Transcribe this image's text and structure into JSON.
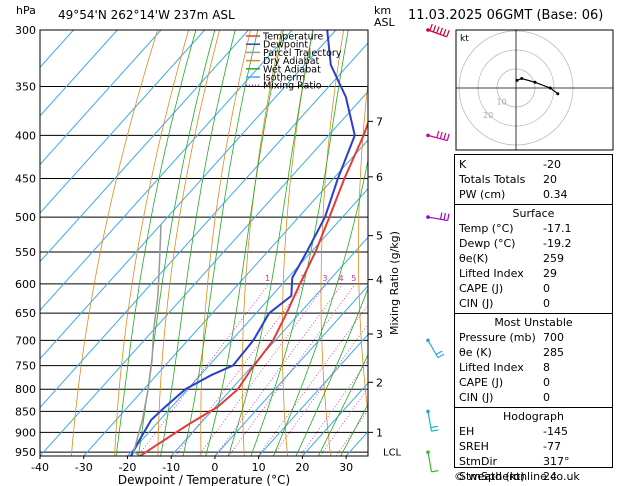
{
  "header": {
    "location": "49°54'N  262°14'W  237m  ASL",
    "datetime": "11.03.2025  06GMT  (Base: 06)",
    "hpa_unit": "hPa",
    "km_unit": "km",
    "asl_unit": "ASL"
  },
  "chart_data": {
    "type": "line",
    "title": "Skew-T log-P sounding",
    "xlabel": "Dewpoint / Temperature (°C)",
    "ylabel": "hPa",
    "mixing_ratio_axis_label": "Mixing Ratio (g/kg)",
    "xlim": [
      -40,
      35
    ],
    "ylim": [
      960,
      300
    ],
    "x_ticks": [
      -40,
      -30,
      -20,
      -10,
      0,
      10,
      20,
      30
    ],
    "x_tick_labels": [
      "-40",
      "-30",
      "-20",
      "-10",
      "0",
      "10",
      "20",
      "30"
    ],
    "pressure_levels": [
      300,
      350,
      400,
      450,
      500,
      550,
      600,
      650,
      700,
      750,
      800,
      850,
      900,
      950
    ],
    "km_levels": [
      {
        "km": 1,
        "p": 900
      },
      {
        "km": 2,
        "p": 785
      },
      {
        "km": 3,
        "p": 688
      },
      {
        "km": 4,
        "p": 593
      },
      {
        "km": 5,
        "p": 526
      },
      {
        "km": 6,
        "p": 448
      },
      {
        "km": 7,
        "p": 385
      }
    ],
    "lcl_label": "LCL",
    "lcl_pressure": 948,
    "mixing_ratio_labels": [
      "1",
      "2",
      "3",
      "4",
      "5",
      "8",
      "10",
      "15",
      "20",
      "25"
    ],
    "legend": [
      {
        "name": "Temperature",
        "color": "#e23b3b",
        "dash": "solid"
      },
      {
        "name": "Dewpoint",
        "color": "#2b3fcc",
        "dash": "solid"
      },
      {
        "name": "Parcel Trajectory",
        "color": "#999999",
        "dash": "solid"
      },
      {
        "name": "Dry Adiabat",
        "color": "#e08a1e",
        "dash": "solid"
      },
      {
        "name": "Wet Adiabat",
        "color": "#22aa22",
        "dash": "solid"
      },
      {
        "name": "Isotherm",
        "color": "#3fa9e8",
        "dash": "solid"
      },
      {
        "name": "Mixing Ratio",
        "color": "#cc2fa6",
        "dash": "dotted"
      }
    ],
    "series": [
      {
        "name": "Temperature",
        "color": "#e23b3b",
        "points": [
          [
            -17.1,
            960
          ],
          [
            -15.5,
            930
          ],
          [
            -12.5,
            880
          ],
          [
            -9.5,
            840
          ],
          [
            -8.5,
            800
          ],
          [
            -9.5,
            760
          ],
          [
            -10.5,
            700
          ],
          [
            -13,
            650
          ],
          [
            -16,
            600
          ],
          [
            -19,
            550
          ],
          [
            -23,
            500
          ],
          [
            -27.5,
            450
          ],
          [
            -32,
            400
          ],
          [
            -38,
            350
          ],
          [
            -44,
            300
          ]
        ]
      },
      {
        "name": "Dewpoint",
        "color": "#2b3fcc",
        "points": [
          [
            -19.2,
            960
          ],
          [
            -20.5,
            920
          ],
          [
            -22,
            870
          ],
          [
            -21.5,
            840
          ],
          [
            -20.5,
            800
          ],
          [
            -17.5,
            770
          ],
          [
            -14.5,
            750
          ],
          [
            -15,
            700
          ],
          [
            -17,
            650
          ],
          [
            -15.5,
            620
          ],
          [
            -19,
            590
          ],
          [
            -21,
            550
          ],
          [
            -24,
            500
          ],
          [
            -29,
            450
          ],
          [
            -34,
            400
          ],
          [
            -44,
            360
          ],
          [
            -54,
            330
          ],
          [
            -62,
            300
          ]
        ]
      },
      {
        "name": "Parcel Trajectory",
        "color": "#999999",
        "points": [
          [
            -17.1,
            960
          ],
          [
            -19.5,
            948
          ],
          [
            -24,
            870
          ],
          [
            -29,
            800
          ],
          [
            -34,
            740
          ],
          [
            -40,
            680
          ],
          [
            -46,
            620
          ],
          [
            -52,
            570
          ],
          [
            -60,
            510
          ]
        ]
      }
    ]
  },
  "hodograph": {
    "unit_label": "kt",
    "ring_labels": [
      "10",
      "20"
    ],
    "points": [
      [
        0.5,
        -4
      ],
      [
        3,
        -5
      ],
      [
        10,
        -3
      ],
      [
        18,
        0
      ],
      [
        22,
        3
      ]
    ]
  },
  "indices": {
    "rows": [
      {
        "label": "K",
        "value": "-20"
      },
      {
        "label": "Totals Totals",
        "value": "20"
      },
      {
        "label": "PW (cm)",
        "value": "0.34"
      }
    ],
    "surface": {
      "title": "Surface",
      "rows": [
        {
          "label": "Temp (°C)",
          "value": "-17.1"
        },
        {
          "label": "Dewp (°C)",
          "value": "-19.2"
        },
        {
          "label": "θe(K)",
          "value": "259"
        },
        {
          "label": "Lifted Index",
          "value": "29"
        },
        {
          "label": "CAPE (J)",
          "value": "0"
        },
        {
          "label": "CIN (J)",
          "value": "0"
        }
      ]
    },
    "most_unstable": {
      "title": "Most Unstable",
      "rows": [
        {
          "label": "Pressure (mb)",
          "value": "700"
        },
        {
          "label": "θe (K)",
          "value": "285"
        },
        {
          "label": "Lifted Index",
          "value": "8"
        },
        {
          "label": "CAPE (J)",
          "value": "0"
        },
        {
          "label": "CIN (J)",
          "value": "0"
        }
      ]
    },
    "hodograph_section": {
      "title": "Hodograph",
      "rows": [
        {
          "label": "EH",
          "value": "-145"
        },
        {
          "label": "SREH",
          "value": "-77"
        },
        {
          "label": "StmDir",
          "value": "317°"
        },
        {
          "label": "StmSpd (kt)",
          "value": "24"
        }
      ]
    }
  },
  "wind_barbs": [
    {
      "p": 300,
      "color": "#cc0033",
      "dir": 290,
      "spd": 60
    },
    {
      "p": 400,
      "color": "#cc0099",
      "dir": 285,
      "spd": 35
    },
    {
      "p": 500,
      "color": "#9900cc",
      "dir": 280,
      "spd": 30
    },
    {
      "p": 700,
      "color": "#2ba8d8",
      "dir": 330,
      "spd": 20
    },
    {
      "p": 850,
      "color": "#18b0c0",
      "dir": 350,
      "spd": 15
    },
    {
      "p": 950,
      "color": "#33bb33",
      "dir": 350,
      "spd": 10
    }
  ],
  "footer": {
    "credit": "© weatheronline.co.uk"
  },
  "colors": {
    "isotherm": "#3fa9e8",
    "dry_adiabat": "#e08a1e",
    "wet_adiabat": "#22aa22",
    "mixing_ratio": "#cc2fa6"
  }
}
